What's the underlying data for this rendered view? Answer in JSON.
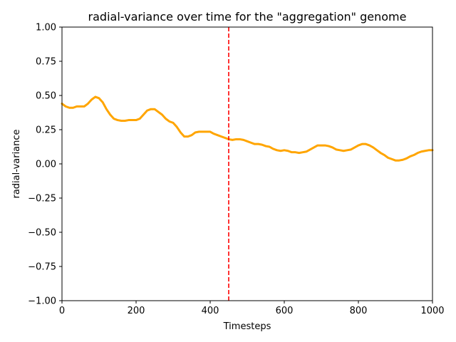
{
  "chart_data": {
    "type": "line",
    "title": "radial-variance over time for the \"aggregation\" genome",
    "xlabel": "Timesteps",
    "ylabel": "radial-variance",
    "xlim": [
      0,
      1000
    ],
    "ylim": [
      -1.0,
      1.0
    ],
    "x_ticks": [
      0,
      200,
      400,
      600,
      800,
      1000
    ],
    "x_tick_labels": [
      "0",
      "200",
      "400",
      "600",
      "800",
      "1000"
    ],
    "y_ticks": [
      -1.0,
      -0.75,
      -0.5,
      -0.25,
      0.0,
      0.25,
      0.5,
      0.75,
      1.0
    ],
    "y_tick_labels": [
      "−1.00",
      "−0.75",
      "−0.50",
      "−0.25",
      "0.00",
      "0.25",
      "0.50",
      "0.75",
      "1.00"
    ],
    "grid": false,
    "series": [
      {
        "color": "#ffa500",
        "x": [
          0,
          10,
          20,
          30,
          40,
          50,
          60,
          70,
          80,
          90,
          100,
          110,
          120,
          130,
          140,
          150,
          160,
          170,
          180,
          190,
          200,
          210,
          220,
          230,
          240,
          250,
          260,
          270,
          280,
          290,
          300,
          310,
          320,
          330,
          340,
          350,
          360,
          370,
          380,
          390,
          400,
          410,
          420,
          430,
          440,
          450,
          460,
          470,
          480,
          490,
          500,
          510,
          520,
          530,
          540,
          550,
          560,
          570,
          580,
          590,
          600,
          610,
          620,
          630,
          640,
          650,
          660,
          670,
          680,
          690,
          700,
          710,
          720,
          730,
          740,
          750,
          760,
          770,
          780,
          790,
          800,
          810,
          820,
          830,
          840,
          850,
          860,
          870,
          880,
          890,
          900,
          910,
          920,
          930,
          940,
          950,
          960,
          970,
          980,
          990,
          1000
        ],
        "y": [
          0.44,
          0.42,
          0.41,
          0.41,
          0.42,
          0.42,
          0.42,
          0.44,
          0.47,
          0.49,
          0.48,
          0.45,
          0.4,
          0.36,
          0.33,
          0.32,
          0.315,
          0.315,
          0.32,
          0.32,
          0.32,
          0.33,
          0.36,
          0.39,
          0.4,
          0.4,
          0.38,
          0.36,
          0.33,
          0.31,
          0.3,
          0.27,
          0.23,
          0.2,
          0.2,
          0.21,
          0.23,
          0.235,
          0.235,
          0.235,
          0.235,
          0.22,
          0.21,
          0.2,
          0.19,
          0.18,
          0.175,
          0.18,
          0.18,
          0.175,
          0.165,
          0.155,
          0.145,
          0.145,
          0.14,
          0.13,
          0.125,
          0.11,
          0.1,
          0.095,
          0.1,
          0.095,
          0.085,
          0.085,
          0.08,
          0.085,
          0.09,
          0.105,
          0.12,
          0.135,
          0.135,
          0.135,
          0.13,
          0.12,
          0.105,
          0.1,
          0.095,
          0.1,
          0.105,
          0.12,
          0.135,
          0.145,
          0.145,
          0.135,
          0.12,
          0.1,
          0.08,
          0.065,
          0.045,
          0.035,
          0.025,
          0.025,
          0.03,
          0.04,
          0.055,
          0.065,
          0.08,
          0.09,
          0.095,
          0.1,
          0.1
        ]
      }
    ],
    "vline": {
      "x": 450,
      "color": "#ff0000",
      "style": "dashed"
    }
  }
}
